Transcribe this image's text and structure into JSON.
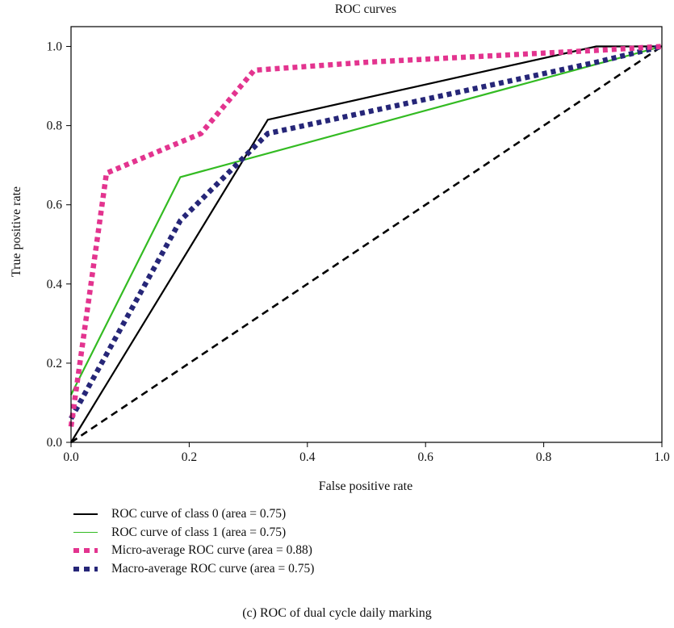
{
  "chart_data": {
    "type": "line",
    "title": "ROC curves",
    "xlabel": "False positive rate",
    "ylabel": "True positive rate",
    "xlim": [
      0,
      1
    ],
    "ylim": [
      0,
      1.05
    ],
    "xticks": [
      0.0,
      0.2,
      0.4,
      0.6,
      0.8,
      1.0
    ],
    "yticks": [
      0.0,
      0.2,
      0.4,
      0.6,
      0.8,
      1.0
    ],
    "xtick_labels": [
      "0.0",
      "0.2",
      "0.4",
      "0.6",
      "0.8",
      "1.0"
    ],
    "ytick_labels": [
      "0.0",
      "0.2",
      "0.4",
      "0.6",
      "0.8",
      "1.0"
    ],
    "grid": false,
    "legend_position": "below",
    "series": [
      {
        "name": "ROC curve of class 0 (area = 0.75)",
        "color": "#000000",
        "style": "solid",
        "x": [
          0.0,
          0.333,
          0.889,
          1.0
        ],
        "y": [
          0.0,
          0.815,
          1.0,
          1.0
        ]
      },
      {
        "name": "ROC curve of class 1 (area = 0.75)",
        "color": "#33bb22",
        "style": "solid",
        "x": [
          0.0,
          0.185,
          1.0
        ],
        "y": [
          0.12,
          0.67,
          1.0
        ]
      },
      {
        "name": "Micro-average ROC curve (area = 0.88)",
        "color": "#e3348f",
        "style": "dotted",
        "x": [
          0.0,
          0.06,
          0.22,
          0.31,
          0.5,
          0.89,
          1.0
        ],
        "y": [
          0.04,
          0.68,
          0.78,
          0.94,
          0.96,
          0.99,
          1.0
        ]
      },
      {
        "name": "Macro-average ROC curve (area = 0.75)",
        "color": "#262678",
        "style": "dotted",
        "x": [
          0.0,
          0.185,
          0.333,
          0.889,
          1.0
        ],
        "y": [
          0.06,
          0.56,
          0.78,
          0.96,
          1.0
        ]
      },
      {
        "name": "",
        "color": "#000000",
        "style": "dashed",
        "x": [
          0.0,
          1.0
        ],
        "y": [
          0.0,
          1.0
        ]
      }
    ]
  },
  "legend": {
    "items": [
      {
        "label": "ROC curve of class 0 (area = 0.75)",
        "color": "#000000",
        "style": "solid"
      },
      {
        "label": "ROC curve of class 1 (area = 0.75)",
        "color": "#33bb22",
        "style": "solid"
      },
      {
        "label": "Micro-average ROC curve (area = 0.88)",
        "color": "#e3348f",
        "style": "dotted"
      },
      {
        "label": "Macro-average ROC curve (area = 0.75)",
        "color": "#262678",
        "style": "dotted"
      }
    ]
  },
  "caption": "(c) ROC of dual cycle daily marking"
}
